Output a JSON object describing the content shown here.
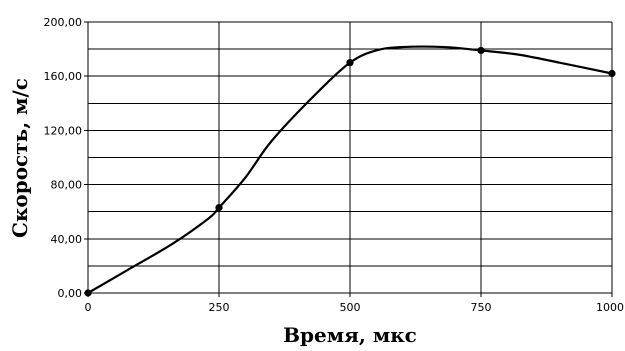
{
  "chart_data": {
    "type": "line",
    "title": "",
    "xlabel": "Время, мкс",
    "ylabel": "Скорость, м/с",
    "xlim": [
      0,
      1000
    ],
    "ylim": [
      0,
      200
    ],
    "x_ticks": [
      0,
      250,
      500,
      750,
      1000
    ],
    "x_tick_labels": [
      "0",
      "250",
      "500",
      "750",
      "1000"
    ],
    "y_ticks": [
      0,
      40,
      80,
      120,
      160,
      200
    ],
    "y_tick_labels": [
      "0,00",
      "40,00",
      "80,00",
      "120,00",
      "160,00",
      "200,00"
    ],
    "y_gridlines": [
      0,
      20,
      40,
      60,
      80,
      100,
      120,
      140,
      160,
      180,
      200
    ],
    "x_gridlines": [
      250,
      500,
      750,
      1000
    ],
    "grid": true,
    "legend": "none",
    "series": [
      {
        "markers": [
          [
            0,
            0
          ],
          [
            250,
            63
          ],
          [
            500,
            170
          ],
          [
            750,
            179
          ],
          [
            1000,
            162
          ]
        ],
        "curve": [
          [
            0,
            0
          ],
          [
            80,
            18
          ],
          [
            160,
            36
          ],
          [
            230,
            55
          ],
          [
            250,
            63
          ],
          [
            300,
            85
          ],
          [
            350,
            112
          ],
          [
            430,
            145
          ],
          [
            500,
            170
          ],
          [
            550,
            179
          ],
          [
            600,
            181.5
          ],
          [
            680,
            181.5
          ],
          [
            750,
            179
          ],
          [
            820,
            176
          ],
          [
            900,
            170
          ],
          [
            1000,
            162
          ]
        ],
        "color": "#000000"
      }
    ]
  }
}
